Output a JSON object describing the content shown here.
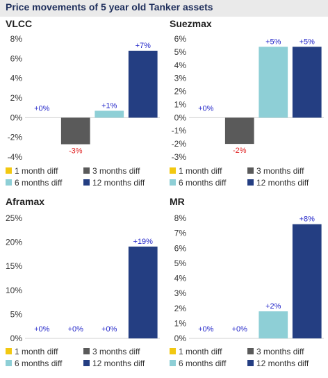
{
  "title": "Price movements of 5 year old Tanker assets",
  "colors": {
    "1 month diff": "#f2c811",
    "3 months diff": "#5a5a5a",
    "6 months diff": "#8ecfd6",
    "12 months diff": "#243e82",
    "positive_label": "#2326c9",
    "negative_label": "#e02020"
  },
  "chart_data": [
    {
      "type": "bar",
      "title": "VLCC",
      "categories": [
        "1 month diff",
        "3 months diff",
        "6 months diff",
        "12 months diff"
      ],
      "values": [
        0,
        -2.7,
        0.7,
        6.8
      ],
      "data_labels": [
        "+0%",
        "-3%",
        "+1%",
        "+7%"
      ],
      "ylim": [
        -4,
        8
      ],
      "yticks": [
        -4,
        -2,
        0,
        2,
        4,
        6,
        8
      ],
      "ytick_labels": [
        "-4%",
        "-2%",
        "0%",
        "2%",
        "4%",
        "6%",
        "8%"
      ],
      "legend": [
        "1 month diff",
        "3 months diff",
        "6 months diff",
        "12 months diff"
      ]
    },
    {
      "type": "bar",
      "title": "Suezmax",
      "categories": [
        "1 month diff",
        "3 months diff",
        "6 months diff",
        "12 months diff"
      ],
      "values": [
        0,
        -2.0,
        5.4,
        5.4
      ],
      "data_labels": [
        "+0%",
        "-2%",
        "+5%",
        "+5%"
      ],
      "ylim": [
        -3,
        6
      ],
      "yticks": [
        -3,
        -2,
        -1,
        0,
        1,
        2,
        3,
        4,
        5,
        6
      ],
      "ytick_labels": [
        "-3%",
        "-2%",
        "-1%",
        "0%",
        "1%",
        "2%",
        "3%",
        "4%",
        "5%",
        "6%"
      ],
      "legend": [
        "1 month diff",
        "3 months diff",
        "6 months diff",
        "12 months diff"
      ]
    },
    {
      "type": "bar",
      "title": "Aframax",
      "categories": [
        "1 month diff",
        "3 months diff",
        "6 months diff",
        "12 months diff"
      ],
      "values": [
        0,
        0,
        0,
        19.1
      ],
      "data_labels": [
        "+0%",
        "+0%",
        "+0%",
        "+19%"
      ],
      "ylim": [
        0,
        25
      ],
      "yticks": [
        0,
        5,
        10,
        15,
        20,
        25
      ],
      "ytick_labels": [
        "0%",
        "5%",
        "10%",
        "15%",
        "20%",
        "25%"
      ],
      "legend": [
        "1 month diff",
        "3 months diff",
        "6 months diff",
        "12 months diff"
      ]
    },
    {
      "type": "bar",
      "title": "MR",
      "categories": [
        "1 month diff",
        "3 months diff",
        "6 months diff",
        "12 months diff"
      ],
      "values": [
        0,
        0,
        1.8,
        7.6
      ],
      "data_labels": [
        "+0%",
        "+0%",
        "+2%",
        "+8%"
      ],
      "ylim": [
        0,
        8
      ],
      "yticks": [
        0,
        1,
        2,
        3,
        4,
        5,
        6,
        7,
        8
      ],
      "ytick_labels": [
        "0%",
        "1%",
        "2%",
        "3%",
        "4%",
        "5%",
        "6%",
        "7%",
        "8%"
      ],
      "legend": [
        "1 month diff",
        "3 months diff",
        "6 months diff",
        "12 months diff"
      ]
    }
  ]
}
